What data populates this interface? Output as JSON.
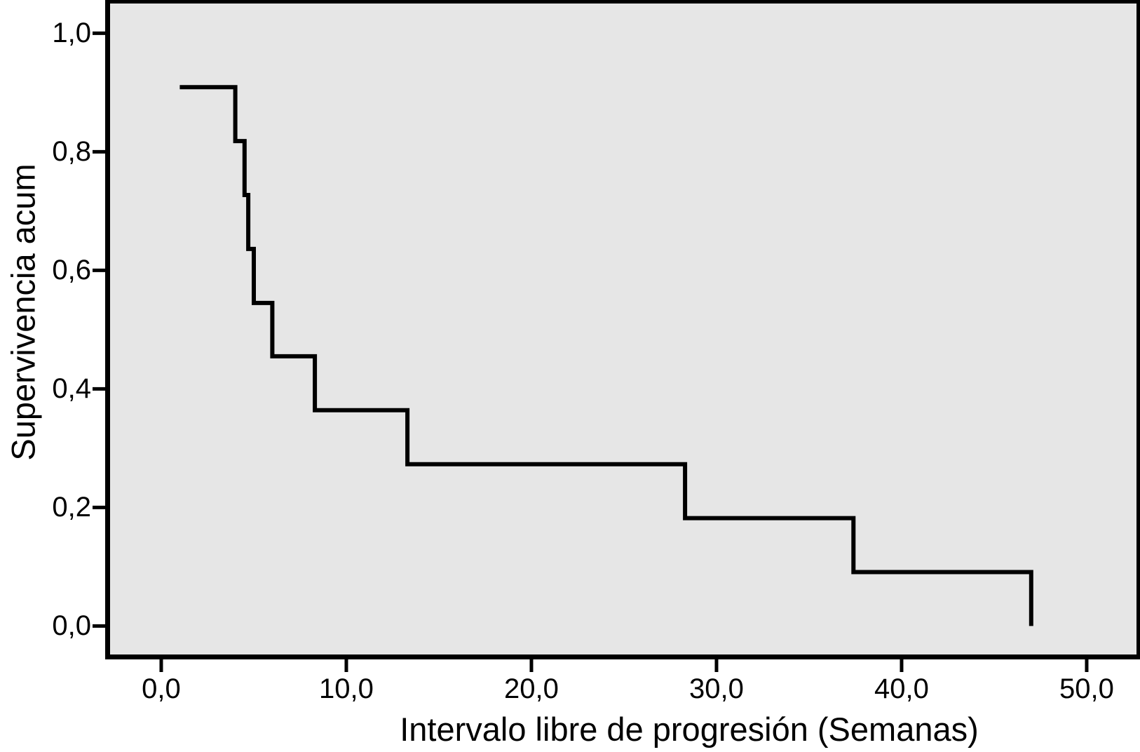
{
  "figure": {
    "background": "#ffffff",
    "plot_background": "#e6e6e6",
    "axis_color": "#000000",
    "curve_color": "#000000"
  },
  "chart_data": {
    "type": "line",
    "subtype": "kaplan_meier_step",
    "title": "",
    "xlabel": "Intervalo libre de progresión (Semanas)",
    "ylabel": "Supervivencia acum",
    "xlim": [
      -2.84,
      52.88
    ],
    "ylim": [
      -0.048,
      1.056
    ],
    "grid": false,
    "legend": false,
    "x_ticks": [
      {
        "value": 0,
        "label": "0,0"
      },
      {
        "value": 10,
        "label": "10,0"
      },
      {
        "value": 20,
        "label": "20,0"
      },
      {
        "value": 30,
        "label": "30,0"
      },
      {
        "value": 40,
        "label": "40,0"
      },
      {
        "value": 50,
        "label": "50,0"
      }
    ],
    "y_ticks": [
      {
        "value": 0.0,
        "label": "0,0"
      },
      {
        "value": 0.2,
        "label": "0,2"
      },
      {
        "value": 0.4,
        "label": "0,4"
      },
      {
        "value": 0.6,
        "label": "0,6"
      },
      {
        "value": 0.8,
        "label": "0,8"
      },
      {
        "value": 1.0,
        "label": "1,0"
      }
    ],
    "series": [
      {
        "name": "Supervivencia acum",
        "draw": "step_post",
        "points": [
          {
            "x": 1.0,
            "y": 0.909
          },
          {
            "x": 4.0,
            "y": 0.818
          },
          {
            "x": 4.5,
            "y": 0.727
          },
          {
            "x": 4.7,
            "y": 0.636
          },
          {
            "x": 5.0,
            "y": 0.545
          },
          {
            "x": 6.0,
            "y": 0.455
          },
          {
            "x": 8.3,
            "y": 0.364
          },
          {
            "x": 13.3,
            "y": 0.273
          },
          {
            "x": 28.3,
            "y": 0.182
          },
          {
            "x": 37.4,
            "y": 0.091
          },
          {
            "x": 47.0,
            "y": 0.0
          }
        ]
      }
    ]
  }
}
